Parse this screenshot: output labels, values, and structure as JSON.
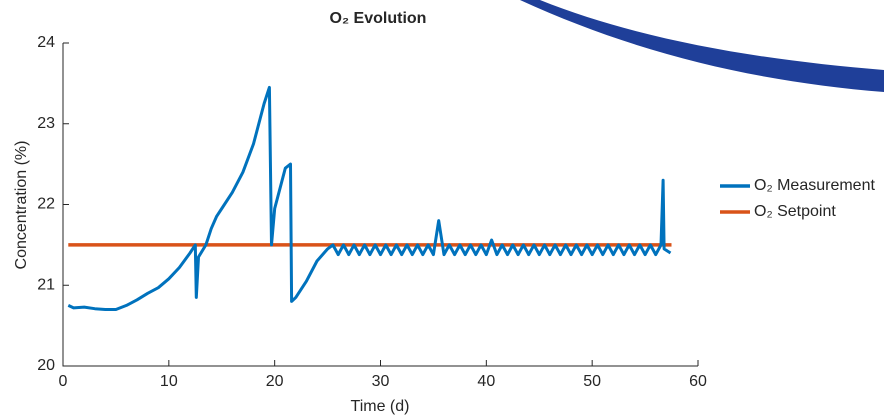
{
  "chart_data": {
    "type": "line",
    "title": "O₂ Evolution",
    "x_label": "Time (d)",
    "y_label": "Concentration (%)",
    "xlim": [
      0,
      60
    ],
    "xticks": [
      0,
      10,
      20,
      30,
      40,
      50,
      60
    ],
    "ylim": [
      20,
      24
    ],
    "yticks": [
      20,
      21,
      22,
      23,
      24
    ],
    "grid": false,
    "legend": "right",
    "series": [
      {
        "name": "O₂ Measurement",
        "color": "#0072bd",
        "x": [
          0.5,
          1,
          2,
          3,
          4,
          5,
          6,
          7,
          8,
          9,
          10,
          11,
          12,
          12.5,
          12.6,
          12.8,
          13.5,
          14,
          14.5,
          15,
          16,
          17,
          18,
          19,
          19.5,
          19.7,
          20,
          21,
          21.5,
          21.6,
          22,
          23,
          24,
          25,
          25.5,
          26,
          26.5,
          27,
          27.5,
          28,
          28.5,
          29,
          29.5,
          30,
          30.5,
          31,
          31.5,
          32,
          32.5,
          33,
          33.5,
          34,
          34.5,
          35,
          35.5,
          36,
          36.5,
          37,
          37.5,
          38,
          38.5,
          39,
          39.5,
          40,
          40.5,
          41,
          41.5,
          42,
          42.5,
          43,
          43.5,
          44,
          44.5,
          45,
          45.5,
          46,
          46.5,
          47,
          47.5,
          48,
          48.5,
          49,
          49.5,
          50,
          50.5,
          51,
          51.5,
          52,
          52.5,
          53,
          53.5,
          54,
          54.5,
          55,
          55.5,
          56,
          56.5,
          56.7,
          56.8,
          57.4
        ],
        "values": [
          20.75,
          20.72,
          20.73,
          20.71,
          20.7,
          20.7,
          20.75,
          20.82,
          20.9,
          20.97,
          21.08,
          21.22,
          21.4,
          21.5,
          20.85,
          21.35,
          21.5,
          21.7,
          21.85,
          21.95,
          22.15,
          22.4,
          22.75,
          23.25,
          23.45,
          21.5,
          21.95,
          22.45,
          22.5,
          20.8,
          20.85,
          21.05,
          21.3,
          21.45,
          21.5,
          21.38,
          21.5,
          21.38,
          21.5,
          21.38,
          21.5,
          21.38,
          21.5,
          21.38,
          21.5,
          21.38,
          21.5,
          21.38,
          21.5,
          21.38,
          21.5,
          21.38,
          21.5,
          21.38,
          21.8,
          21.38,
          21.5,
          21.38,
          21.5,
          21.38,
          21.5,
          21.38,
          21.5,
          21.38,
          21.56,
          21.38,
          21.5,
          21.38,
          21.5,
          21.38,
          21.5,
          21.38,
          21.5,
          21.38,
          21.5,
          21.38,
          21.5,
          21.38,
          21.5,
          21.38,
          21.5,
          21.38,
          21.5,
          21.38,
          21.5,
          21.38,
          21.5,
          21.38,
          21.5,
          21.38,
          21.5,
          21.38,
          21.5,
          21.38,
          21.5,
          21.38,
          21.5,
          22.3,
          21.45,
          21.4
        ]
      },
      {
        "name": "O₂ Setpoint",
        "color": "#d95319",
        "x": [
          0.5,
          57.5
        ],
        "values": [
          21.5,
          21.5
        ]
      }
    ]
  }
}
